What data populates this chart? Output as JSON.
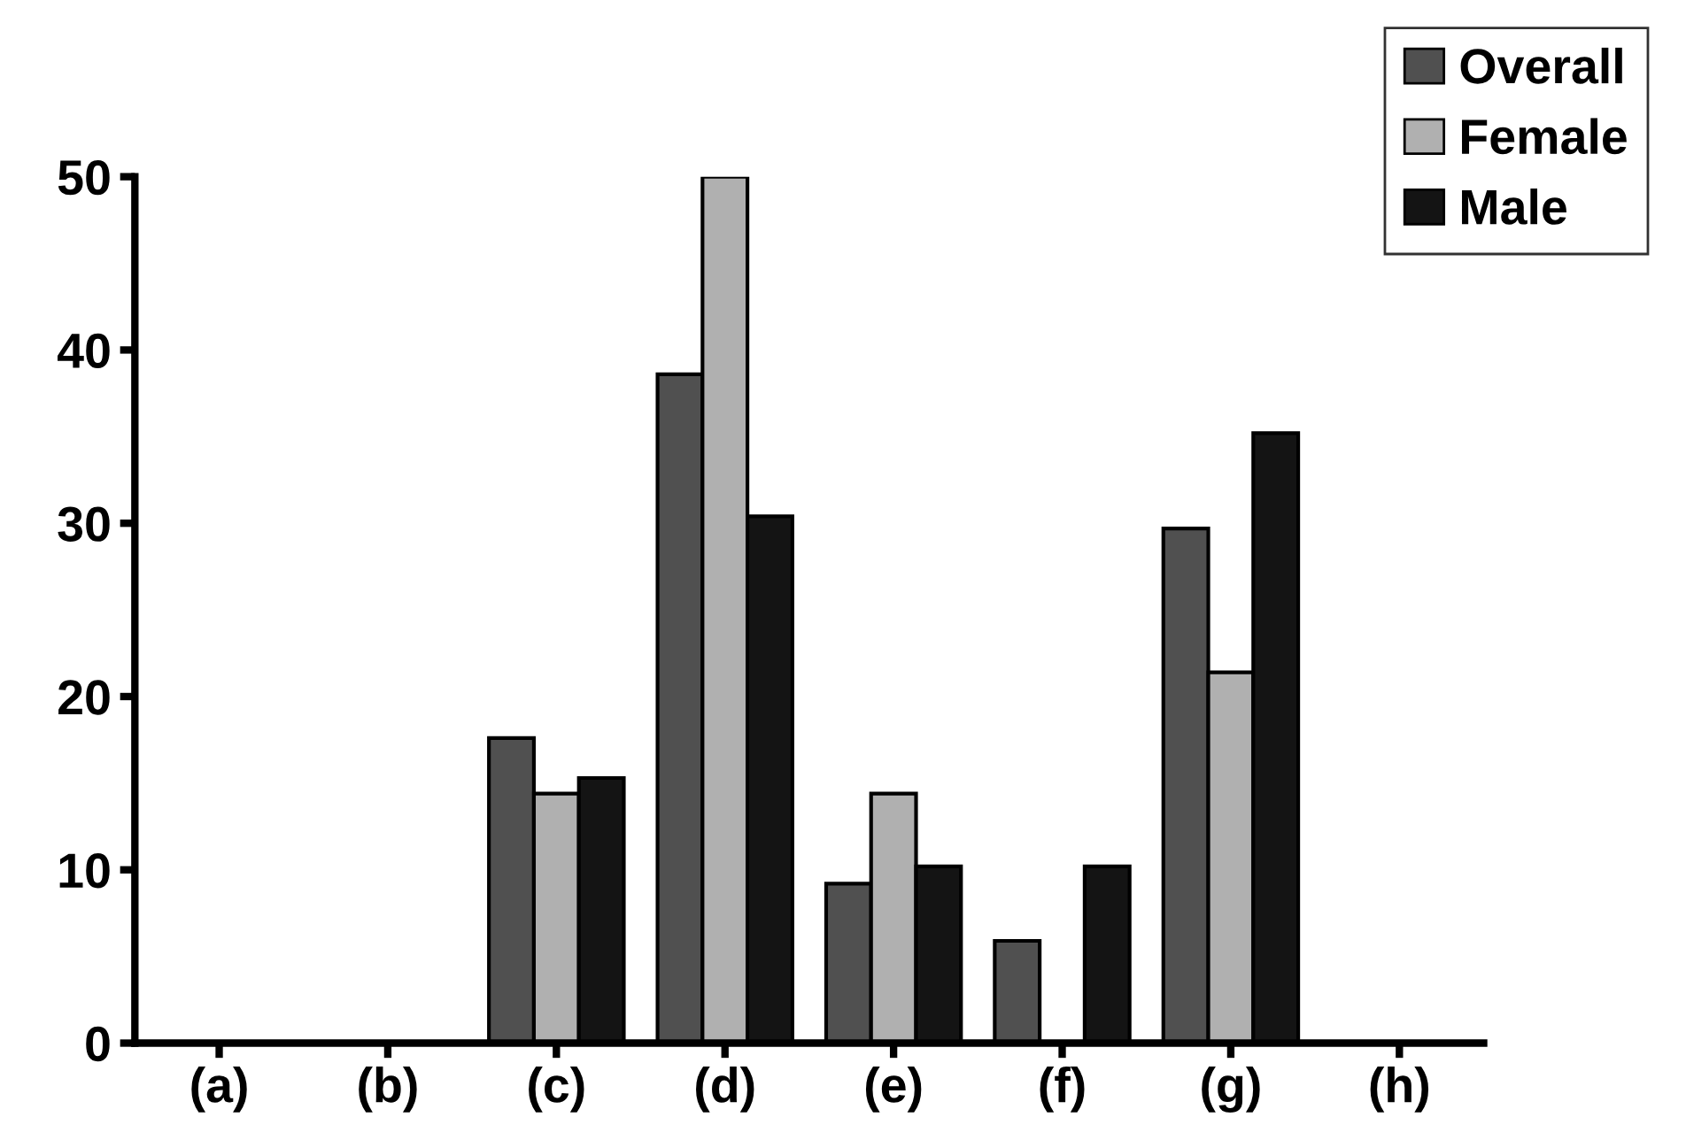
{
  "chart_data": {
    "type": "bar",
    "categories": [
      "(a)",
      "(b)",
      "(c)",
      "(d)",
      "(e)",
      "(f)",
      "(g)",
      "(h)"
    ],
    "series": [
      {
        "name": "Overall",
        "color": "#505050",
        "values": [
          0,
          0,
          17.6,
          38.6,
          9.2,
          5.9,
          29.7,
          0
        ]
      },
      {
        "name": "Female",
        "color": "#b0b0b0",
        "values": [
          0,
          0,
          14.4,
          50,
          14.4,
          0,
          21.4,
          0
        ]
      },
      {
        "name": "Male",
        "color": "#141414",
        "values": [
          0,
          0,
          15.3,
          30.4,
          10.2,
          10.2,
          35.2,
          0
        ]
      }
    ],
    "ylim": [
      0,
      50
    ],
    "yticks": [
      0,
      10,
      20,
      30,
      40,
      50
    ],
    "grid": false,
    "legend": "top right"
  }
}
